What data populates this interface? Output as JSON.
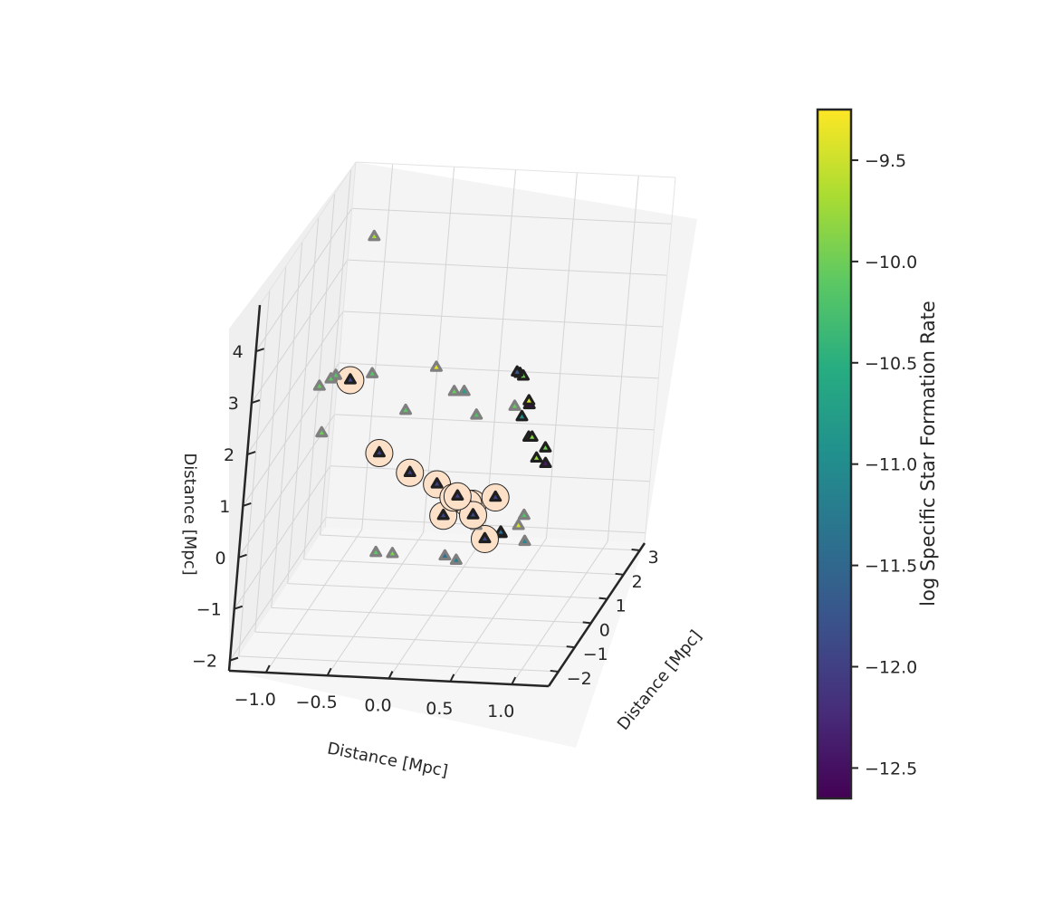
{
  "chart_data": {
    "type": "scatter",
    "projection": "3d",
    "title": "",
    "x_axis": {
      "label": "Distance [Mpc]",
      "range": [
        -1.3,
        1.3
      ],
      "ticks": [
        -1.0,
        -0.5,
        0.0,
        0.5,
        1.0
      ],
      "tick_labels": [
        "−1.0",
        "−0.5",
        "0.0",
        "0.5",
        "1.0"
      ]
    },
    "y_axis": {
      "label": "Distance [Mpc]",
      "range": [
        3.3,
        -2.6
      ],
      "ticks": [
        -2,
        -1,
        0,
        1,
        2,
        3
      ],
      "tick_labels": [
        "−2",
        "−1",
        "0",
        "1",
        "2",
        "3"
      ]
    },
    "z_axis": {
      "label": "Distance [Mpc]",
      "range": [
        -2.2,
        4.9
      ],
      "ticks": [
        -2,
        -1,
        0,
        1,
        2,
        3,
        4
      ],
      "tick_labels": [
        "−2",
        "−1",
        "0",
        "1",
        "2",
        "3",
        "4"
      ]
    },
    "grid": true,
    "colorbar": {
      "label": "log Specific Star Formation Rate",
      "colormap": "viridis",
      "range": [
        -12.65,
        -9.25
      ],
      "ticks": [
        -12.5,
        -12.0,
        -11.5,
        -11.0,
        -10.5,
        -10.0,
        -9.5
      ],
      "tick_labels": [
        "−12.5",
        "−12.0",
        "−11.5",
        "−11.0",
        "−10.5",
        "−10.0",
        "−9.5"
      ]
    },
    "points": [
      {
        "x": -0.95,
        "y": 2.0,
        "z": 4.1,
        "ssfr": -9.7,
        "edge": "grey",
        "highlight": false
      },
      {
        "x": -0.8,
        "y": -1.5,
        "z": 3.0,
        "ssfr": -10.1,
        "edge": "grey",
        "highlight": false
      },
      {
        "x": -0.78,
        "y": -1.35,
        "z": 3.0,
        "ssfr": -10.15,
        "edge": "grey",
        "highlight": false
      },
      {
        "x": -0.9,
        "y": -1.4,
        "z": 2.8,
        "ssfr": -10.05,
        "edge": "grey",
        "highlight": false
      },
      {
        "x": -0.55,
        "y": -0.8,
        "z": 2.8,
        "ssfr": -10.15,
        "edge": "grey",
        "highlight": false
      },
      {
        "x": -0.85,
        "y": -1.4,
        "z": 1.9,
        "ssfr": -10.0,
        "edge": "grey",
        "highlight": false
      },
      {
        "x": -0.15,
        "y": 0.2,
        "z": 2.5,
        "ssfr": -9.35,
        "edge": "grey",
        "highlight": false
      },
      {
        "x": 0.15,
        "y": -0.3,
        "z": 2.3,
        "ssfr": -10.75,
        "edge": "grey",
        "highlight": false
      },
      {
        "x": 0.0,
        "y": 0.3,
        "z": 2.0,
        "ssfr": -10.05,
        "edge": "grey",
        "highlight": false
      },
      {
        "x": 0.3,
        "y": -0.6,
        "z": 2.0,
        "ssfr": -10.2,
        "edge": "grey",
        "highlight": false
      },
      {
        "x": -0.45,
        "y": 0.9,
        "z": 1.3,
        "ssfr": -10.1,
        "edge": "grey",
        "highlight": false
      },
      {
        "x": 0.65,
        "y": -1.0,
        "z": 2.4,
        "ssfr": -10.05,
        "edge": "grey",
        "highlight": false
      },
      {
        "x": 0.75,
        "y": -1.3,
        "z": 2.35,
        "ssfr": -11.0,
        "edge": "dark",
        "highlight": false
      },
      {
        "x": 0.75,
        "y": -1.9,
        "z": 3.5,
        "ssfr": -11.7,
        "edge": "dark",
        "highlight": false
      },
      {
        "x": 0.78,
        "y": -1.95,
        "z": 3.5,
        "ssfr": -11.6,
        "edge": "dark",
        "highlight": false
      },
      {
        "x": 0.82,
        "y": -2.05,
        "z": 3.5,
        "ssfr": -10.0,
        "edge": "dark",
        "highlight": false
      },
      {
        "x": 0.9,
        "y": -2.15,
        "z": 3.0,
        "ssfr": -12.6,
        "edge": "dark",
        "highlight": false
      },
      {
        "x": 0.9,
        "y": -2.2,
        "z": 3.1,
        "ssfr": -9.45,
        "edge": "dark",
        "highlight": false
      },
      {
        "x": 0.9,
        "y": -2.0,
        "z": 2.3,
        "ssfr": -9.8,
        "edge": "dark",
        "highlight": false
      },
      {
        "x": 0.95,
        "y": -2.2,
        "z": 2.4,
        "ssfr": -9.85,
        "edge": "dark",
        "highlight": false
      },
      {
        "x": 1.1,
        "y": -2.5,
        "z": 2.35,
        "ssfr": -10.0,
        "edge": "dark",
        "highlight": false
      },
      {
        "x": 1.0,
        "y": -2.2,
        "z": 2.0,
        "ssfr": -9.8,
        "edge": "dark",
        "highlight": false
      },
      {
        "x": 1.1,
        "y": -2.4,
        "z": 2.0,
        "ssfr": -12.4,
        "edge": "dark",
        "highlight": false
      },
      {
        "x": 0.8,
        "y": -1.0,
        "z": 0.3,
        "ssfr": -10.2,
        "edge": "grey",
        "highlight": false
      },
      {
        "x": 0.75,
        "y": -0.9,
        "z": 0.05,
        "ssfr": -9.45,
        "edge": "grey",
        "highlight": false
      },
      {
        "x": 0.8,
        "y": -0.8,
        "z": -0.3,
        "ssfr": -11.1,
        "edge": "grey",
        "highlight": false
      },
      {
        "x": -1.0,
        "y": 1.6,
        "z": 1.5,
        "ssfr": -11.9,
        "edge": "dark",
        "highlight": true
      },
      {
        "x": -0.6,
        "y": 0.6,
        "z": 0.6,
        "ssfr": -11.95,
        "edge": "dark",
        "highlight": true
      },
      {
        "x": -0.35,
        "y": 0.7,
        "z": 0.2,
        "ssfr": -12.0,
        "edge": "dark",
        "highlight": true
      },
      {
        "x": -0.1,
        "y": 0.5,
        "z": 0.1,
        "ssfr": -12.0,
        "edge": "dark",
        "highlight": true
      },
      {
        "x": -0.05,
        "y": 0.7,
        "z": -0.6,
        "ssfr": -11.95,
        "edge": "dark",
        "highlight": true
      },
      {
        "x": 0.1,
        "y": 0.0,
        "z": 0.1,
        "ssfr": -12.05,
        "edge": "dark",
        "highlight": true
      },
      {
        "x": 0.15,
        "y": -0.15,
        "z": 0.2,
        "ssfr": -12.0,
        "edge": "dark",
        "highlight": true
      },
      {
        "x": 0.2,
        "y": 0.2,
        "z": -0.1,
        "ssfr": -11.95,
        "edge": "dark",
        "highlight": true
      },
      {
        "x": 0.25,
        "y": 0.1,
        "z": -0.05,
        "ssfr": -12.1,
        "edge": "dark",
        "highlight": true
      },
      {
        "x": 0.3,
        "y": -0.25,
        "z": -0.1,
        "ssfr": -11.9,
        "edge": "dark",
        "highlight": true
      },
      {
        "x": 0.4,
        "y": -0.15,
        "z": -0.6,
        "ssfr": -11.95,
        "edge": "dark",
        "highlight": true
      },
      {
        "x": 0.55,
        "y": -0.95,
        "z": 0.6,
        "ssfr": -12.0,
        "edge": "dark",
        "highlight": true
      },
      {
        "x": 0.32,
        "y": -0.15,
        "z": -0.35,
        "ssfr": -10.05,
        "edge": "grey",
        "highlight": false
      },
      {
        "x": -0.6,
        "y": 0.95,
        "z": -1.5,
        "ssfr": -10.1,
        "edge": "grey",
        "highlight": false
      },
      {
        "x": -0.5,
        "y": 1.25,
        "z": -1.65,
        "ssfr": -9.95,
        "edge": "grey",
        "highlight": false
      },
      {
        "x": -0.05,
        "y": 1.05,
        "z": -1.55,
        "ssfr": -11.4,
        "edge": "grey",
        "highlight": false
      },
      {
        "x": 0.05,
        "y": 1.0,
        "z": -1.6,
        "ssfr": -11.2,
        "edge": "grey",
        "highlight": false
      },
      {
        "x": 0.3,
        "y": 1.8,
        "z": -1.4,
        "ssfr": -11.45,
        "edge": "dark",
        "highlight": false
      },
      {
        "x": 0.3,
        "y": 1.85,
        "z": -1.45,
        "ssfr": -11.55,
        "edge": "dark",
        "highlight": false
      }
    ]
  }
}
